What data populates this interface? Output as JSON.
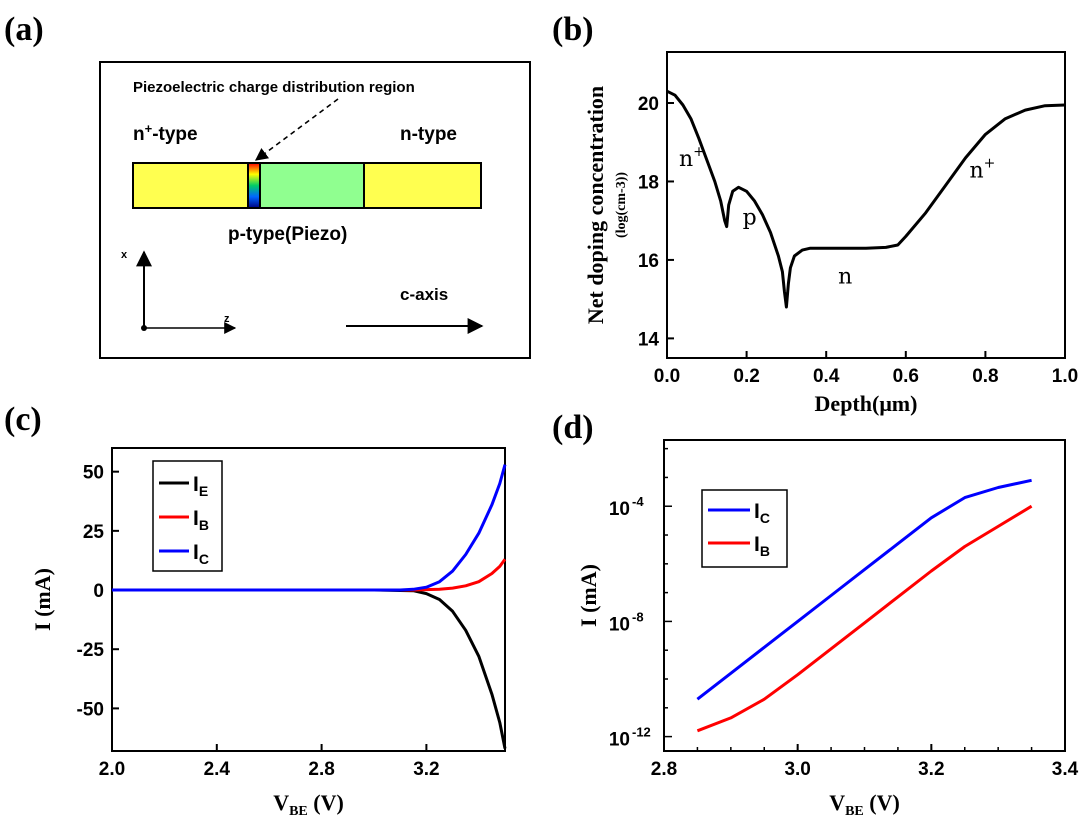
{
  "panel_labels": {
    "a": "(a)",
    "b": "(b)",
    "c": "(c)",
    "d": "(d)"
  },
  "diagram": {
    "annotation": "Piezoelectric charge distribution region",
    "left_label_main": "n",
    "left_label_sup": "+",
    "left_label_rest": "-type",
    "right_label": "n-type",
    "middle_label": "p-type(Piezo)",
    "x_axis_label": "x",
    "z_axis_label": "z",
    "c_axis_label": "c-axis",
    "colors": {
      "n_region": "#ffff50",
      "p_region": "#90ff90",
      "border": "#000000"
    }
  },
  "chart_data": [
    {
      "type": "line",
      "panel": "b",
      "title": "",
      "xlabel": "Depth(μm)",
      "ylabel_line1": "Net doping concentration",
      "ylabel_line2": "(log(cm-3))",
      "xlim": [
        0.0,
        1.0
      ],
      "ylim": [
        13.5,
        21.3
      ],
      "x_ticks": [
        "0.0",
        "0.2",
        "0.4",
        "0.6",
        "0.8",
        "1.0"
      ],
      "y_ticks": [
        "14",
        "16",
        "18",
        "20"
      ],
      "series": [
        {
          "color": "#000000",
          "x": [
            0.0,
            0.02,
            0.04,
            0.06,
            0.08,
            0.1,
            0.12,
            0.135,
            0.145,
            0.15,
            0.155,
            0.165,
            0.18,
            0.2,
            0.22,
            0.24,
            0.26,
            0.28,
            0.29,
            0.295,
            0.3,
            0.305,
            0.31,
            0.32,
            0.34,
            0.36,
            0.4,
            0.45,
            0.5,
            0.55,
            0.58,
            0.6,
            0.65,
            0.7,
            0.75,
            0.8,
            0.85,
            0.9,
            0.95,
            1.0
          ],
          "y": [
            20.3,
            20.2,
            19.95,
            19.6,
            19.1,
            18.55,
            18.0,
            17.5,
            17.0,
            16.85,
            17.4,
            17.75,
            17.85,
            17.75,
            17.5,
            17.15,
            16.7,
            16.1,
            15.7,
            15.2,
            14.8,
            15.4,
            15.8,
            16.1,
            16.25,
            16.3,
            16.3,
            16.3,
            16.3,
            16.32,
            16.38,
            16.6,
            17.2,
            17.9,
            18.6,
            19.2,
            19.6,
            19.82,
            19.93,
            19.95
          ]
        }
      ],
      "annotations": [
        {
          "text": "n",
          "sup": "+",
          "x": 0.03,
          "y": 18.4
        },
        {
          "text": "p",
          "sup": "",
          "x": 0.19,
          "y": 16.9
        },
        {
          "text": "n",
          "sup": "",
          "x": 0.43,
          "y": 15.4
        },
        {
          "text": "n",
          "sup": "+",
          "x": 0.76,
          "y": 18.1
        }
      ]
    },
    {
      "type": "line",
      "panel": "c",
      "title": "",
      "xlabel_main": "V",
      "xlabel_sub": "BE",
      "xlabel_unit": " (V)",
      "ylabel": "I (mA)",
      "xlim": [
        2.0,
        3.5
      ],
      "ylim": [
        -68,
        60
      ],
      "x_ticks": [
        "2.0",
        "2.4",
        "2.8",
        "3.2"
      ],
      "y_ticks": [
        "50",
        "25",
        "0",
        "-25",
        "-50"
      ],
      "legend_position": "top-left",
      "series": [
        {
          "name_main": "I",
          "name_sub": "E",
          "color": "#000000",
          "x": [
            2.0,
            3.0,
            3.15,
            3.2,
            3.25,
            3.3,
            3.35,
            3.4,
            3.45,
            3.48,
            3.5
          ],
          "y": [
            0,
            0,
            -0.3,
            -1.5,
            -4,
            -9,
            -17,
            -28,
            -44,
            -56,
            -67
          ]
        },
        {
          "name_main": "I",
          "name_sub": "B",
          "color": "#ff0000",
          "x": [
            2.0,
            3.15,
            3.25,
            3.3,
            3.35,
            3.4,
            3.45,
            3.48,
            3.5
          ],
          "y": [
            0,
            0,
            0.3,
            0.8,
            1.8,
            3.5,
            7,
            10,
            13
          ]
        },
        {
          "name_main": "I",
          "name_sub": "C",
          "color": "#0000ff",
          "x": [
            2.0,
            3.1,
            3.15,
            3.2,
            3.25,
            3.3,
            3.35,
            3.4,
            3.45,
            3.48,
            3.5
          ],
          "y": [
            0,
            0,
            0.3,
            1.2,
            3.5,
            8,
            15,
            24,
            36,
            45,
            53
          ]
        }
      ]
    },
    {
      "type": "line",
      "panel": "d",
      "title": "",
      "xlabel_main": "V",
      "xlabel_sub": "BE",
      "xlabel_unit": " (V)",
      "ylabel": "I (mA)",
      "y_scale": "log",
      "xlim": [
        2.8,
        3.4
      ],
      "ylim_log10": [
        -12.5,
        -1.7
      ],
      "x_ticks": [
        "2.8",
        "3.0",
        "3.2",
        "3.4"
      ],
      "y_ticks": [
        {
          "base": "10",
          "exp": "-4",
          "value": -4
        },
        {
          "base": "10",
          "exp": "-8",
          "value": -8
        },
        {
          "base": "10",
          "exp": "-12",
          "value": -12
        }
      ],
      "legend_position": "top-left",
      "series": [
        {
          "name_main": "I",
          "name_sub": "C",
          "color": "#0000ff",
          "x": [
            2.85,
            2.9,
            2.95,
            3.0,
            3.05,
            3.1,
            3.15,
            3.2,
            3.25,
            3.3,
            3.35
          ],
          "y_log10": [
            -10.7,
            -9.8,
            -8.9,
            -8.0,
            -7.1,
            -6.2,
            -5.3,
            -4.4,
            -3.7,
            -3.35,
            -3.1
          ]
        },
        {
          "name_main": "I",
          "name_sub": "B",
          "color": "#ff0000",
          "x": [
            2.85,
            2.9,
            2.95,
            3.0,
            3.05,
            3.1,
            3.15,
            3.2,
            3.25,
            3.3,
            3.35
          ],
          "y_log10": [
            -11.8,
            -11.35,
            -10.7,
            -9.85,
            -8.95,
            -8.05,
            -7.15,
            -6.25,
            -5.4,
            -4.7,
            -4.0
          ]
        }
      ]
    }
  ]
}
